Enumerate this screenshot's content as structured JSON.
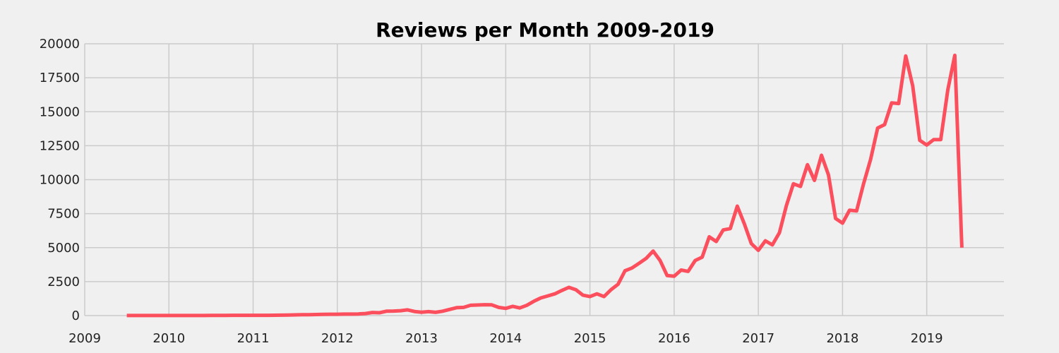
{
  "chart_data": {
    "type": "line",
    "title": "Reviews per Month 2009-2019",
    "xlabel": "",
    "ylabel": "",
    "xlim": [
      "2009-01",
      "2019-12"
    ],
    "ylim": [
      0,
      20000
    ],
    "grid": true,
    "x_ticks": [
      "2009",
      "2010",
      "2011",
      "2012",
      "2013",
      "2014",
      "2015",
      "2016",
      "2017",
      "2018",
      "2019"
    ],
    "y_ticks": [
      0,
      2500,
      5000,
      7500,
      10000,
      12500,
      15000,
      17500,
      20000
    ],
    "series": [
      {
        "color": "#fc4f5e",
        "x": [
          "2009-07",
          "2009-08",
          "2009-09",
          "2009-10",
          "2009-11",
          "2009-12",
          "2010-01",
          "2010-02",
          "2010-03",
          "2010-04",
          "2010-05",
          "2010-06",
          "2010-07",
          "2010-08",
          "2010-09",
          "2010-10",
          "2010-11",
          "2010-12",
          "2011-01",
          "2011-02",
          "2011-03",
          "2011-04",
          "2011-05",
          "2011-06",
          "2011-07",
          "2011-08",
          "2011-09",
          "2011-10",
          "2011-11",
          "2011-12",
          "2012-01",
          "2012-02",
          "2012-03",
          "2012-04",
          "2012-05",
          "2012-06",
          "2012-07",
          "2012-08",
          "2012-09",
          "2012-10",
          "2012-11",
          "2012-12",
          "2013-01",
          "2013-02",
          "2013-03",
          "2013-04",
          "2013-05",
          "2013-06",
          "2013-07",
          "2013-08",
          "2013-09",
          "2013-10",
          "2013-11",
          "2013-12",
          "2014-01",
          "2014-02",
          "2014-03",
          "2014-04",
          "2014-05",
          "2014-06",
          "2014-07",
          "2014-08",
          "2014-09",
          "2014-10",
          "2014-11",
          "2014-12",
          "2015-01",
          "2015-02",
          "2015-03",
          "2015-04",
          "2015-05",
          "2015-06",
          "2015-07",
          "2015-08",
          "2015-09",
          "2015-10",
          "2015-11",
          "2015-12",
          "2016-01",
          "2016-02",
          "2016-03",
          "2016-04",
          "2016-05",
          "2016-06",
          "2016-07",
          "2016-08",
          "2016-09",
          "2016-10",
          "2016-11",
          "2016-12",
          "2017-01",
          "2017-02",
          "2017-03",
          "2017-04",
          "2017-05",
          "2017-06",
          "2017-07",
          "2017-08",
          "2017-09",
          "2017-10",
          "2017-11",
          "2017-12",
          "2018-01",
          "2018-02",
          "2018-03",
          "2018-04",
          "2018-05",
          "2018-06",
          "2018-07",
          "2018-08",
          "2018-09",
          "2018-10",
          "2018-11",
          "2018-12",
          "2019-01",
          "2019-02",
          "2019-03",
          "2019-04",
          "2019-05",
          "2019-06"
        ],
        "values": [
          5,
          5,
          5,
          5,
          5,
          5,
          5,
          5,
          5,
          5,
          5,
          5,
          10,
          10,
          15,
          20,
          20,
          20,
          20,
          20,
          20,
          25,
          30,
          40,
          50,
          60,
          70,
          80,
          90,
          100,
          100,
          110,
          110,
          120,
          150,
          230,
          210,
          320,
          330,
          360,
          420,
          300,
          250,
          290,
          240,
          320,
          450,
          580,
          600,
          760,
          780,
          800,
          790,
          600,
          530,
          680,
          560,
          760,
          1050,
          1300,
          1450,
          1600,
          1850,
          2080,
          1900,
          1500,
          1400,
          1600,
          1400,
          1900,
          2300,
          3300,
          3500,
          3850,
          4200,
          4750,
          4050,
          2950,
          2900,
          3350,
          3250,
          4050,
          4300,
          5800,
          5450,
          6300,
          6400,
          8050,
          6750,
          5300,
          4800,
          5500,
          5200,
          6100,
          8100,
          9700,
          9500,
          11100,
          9950,
          11800,
          10350,
          7150,
          6800,
          7750,
          7700,
          9700,
          11500,
          13800,
          14050,
          15650,
          15600,
          19100,
          16900,
          12900,
          12550,
          12950,
          12950,
          16600,
          19150,
          5000
        ]
      }
    ]
  }
}
